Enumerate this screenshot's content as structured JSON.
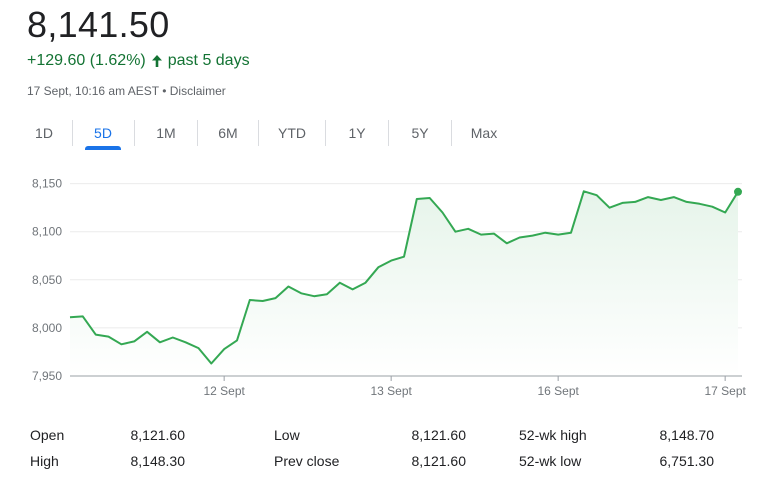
{
  "quote": {
    "price": "8,141.50",
    "change": "+129.60 (1.62%)",
    "period": "past 5 days",
    "timestamp": "17 Sept, 10:16 am AEST",
    "separator": " • ",
    "disclaimer": "Disclaimer",
    "change_color": "#137333"
  },
  "tabs": [
    {
      "label": "1D",
      "active": false
    },
    {
      "label": "5D",
      "active": true
    },
    {
      "label": "1M",
      "active": false
    },
    {
      "label": "6M",
      "active": false
    },
    {
      "label": "YTD",
      "active": false
    },
    {
      "label": "1Y",
      "active": false
    },
    {
      "label": "5Y",
      "active": false
    },
    {
      "label": "Max",
      "active": false
    }
  ],
  "chart_data": {
    "type": "area",
    "line_color": "#34a853",
    "fill_color": "#e6f4ea",
    "ylim": [
      7950,
      8160
    ],
    "yticks": [
      7950,
      8000,
      8050,
      8100,
      8150
    ],
    "ytick_labels": [
      "7,950",
      "8,000",
      "8,050",
      "8,100",
      "8,150"
    ],
    "xticks": [
      {
        "label": "12 Sept",
        "at": 12
      },
      {
        "label": "13 Sept",
        "at": 25
      },
      {
        "label": "16 Sept",
        "at": 38
      },
      {
        "label": "17 Sept",
        "at": 51
      }
    ],
    "grid": true,
    "values": [
      8011,
      8012,
      7993,
      7991,
      7983,
      7986,
      7996,
      7985,
      7990,
      7985,
      7979,
      7963,
      7978,
      7987,
      8029,
      8028,
      8031,
      8043,
      8036,
      8033,
      8035,
      8047,
      8040,
      8047,
      8063,
      8070,
      8074,
      8134,
      8135,
      8120,
      8100,
      8103,
      8097,
      8098,
      8088,
      8094,
      8096,
      8099,
      8097,
      8099,
      8142,
      8138,
      8125,
      8130,
      8131,
      8136,
      8133,
      8136,
      8131,
      8129,
      8126,
      8120,
      8141.5
    ]
  },
  "stats": [
    {
      "label": "Open",
      "value": "8,121.60"
    },
    {
      "label": "High",
      "value": "8,148.30"
    },
    {
      "label": "Low",
      "value": "8,121.60"
    },
    {
      "label": "Prev close",
      "value": "8,121.60"
    },
    {
      "label": "52-wk high",
      "value": "8,148.70"
    },
    {
      "label": "52-wk low",
      "value": "6,751.30"
    }
  ]
}
